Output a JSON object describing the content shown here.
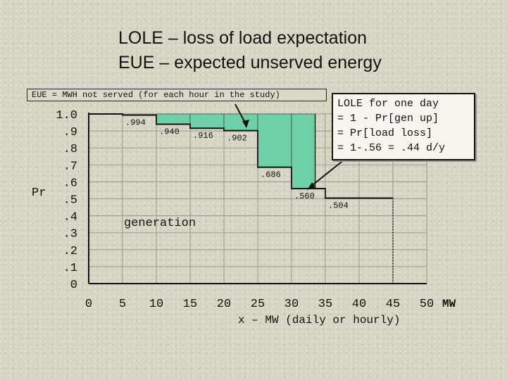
{
  "title_lines": [
    "LOLE – loss of load expectation",
    "EUE – expected unserved energy"
  ],
  "eue_note": "EUE = MWH not served (for each hour in the study)",
  "lole_box": [
    "LOLE for one day",
    "= 1 - Pr[gen up]",
    "= Pr[load loss]",
    "= 1-.56 = .44 d/y"
  ],
  "chart_data": {
    "type": "line",
    "step": true,
    "ylabel": "Pr",
    "xlabel": "x – MW (daily or hourly)",
    "x_unit": "MW",
    "x_ticks": [
      0,
      5,
      10,
      15,
      20,
      25,
      30,
      35,
      40,
      45,
      50
    ],
    "y_ticks": [
      0,
      0.1,
      0.2,
      0.3,
      0.4,
      0.5,
      0.6,
      0.7,
      0.8,
      0.9,
      1.0
    ],
    "y_tick_labels": [
      "0",
      ".1",
      ".2",
      ".3",
      ".4",
      ".5",
      ".6",
      ".7",
      ".8",
      ".9",
      "1.0"
    ],
    "xlim": [
      0,
      50
    ],
    "ylim": [
      0,
      1
    ],
    "grid": true,
    "series": [
      {
        "name": "generation",
        "steps": [
          {
            "x0": 0,
            "x1": 5,
            "y": 1.0,
            "label": ""
          },
          {
            "x0": 5,
            "x1": 10,
            "y": 0.994,
            "label": ".994"
          },
          {
            "x0": 10,
            "x1": 15,
            "y": 0.94,
            "label": ".940"
          },
          {
            "x0": 15,
            "x1": 20,
            "y": 0.916,
            "label": ".916"
          },
          {
            "x0": 20,
            "x1": 25,
            "y": 0.902,
            "label": ".902"
          },
          {
            "x0": 25,
            "x1": 30,
            "y": 0.686,
            "label": ".686"
          },
          {
            "x0": 30,
            "x1": 35,
            "y": 0.56,
            "label": ".560"
          },
          {
            "x0": 35,
            "x1": 45,
            "y": 0.504,
            "label": ".504"
          }
        ]
      }
    ],
    "shaded_region": {
      "x0": 10,
      "x1": 33.5,
      "y_top": 1.0,
      "color": "#6fcfa6"
    },
    "load_line_x": 33.5,
    "colors": {
      "line": "#111111",
      "fill": "#6fcfa6",
      "grid": "#9a978c"
    }
  }
}
